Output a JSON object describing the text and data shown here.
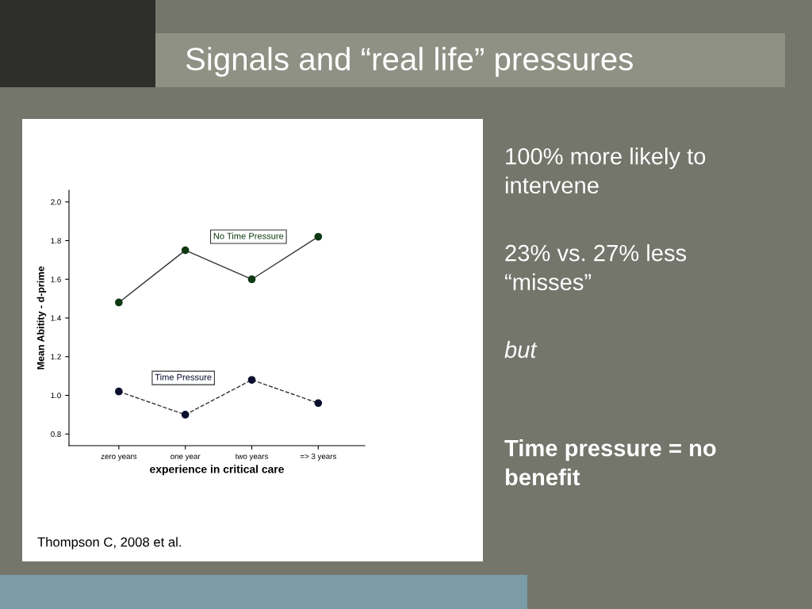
{
  "chart_data": {
    "type": "line",
    "title": "Signals and “real life” pressures",
    "categories": [
      "zero years",
      "one year",
      "two years",
      "=> 3 years"
    ],
    "xlabel": "experience in critical care",
    "ylabel": "Mean Abitity - d-prime",
    "ylim": [
      0.74,
      2.06
    ],
    "yticks": [
      {
        "value": 0.8,
        "label": "0.8"
      },
      {
        "value": 1.0,
        "label": "1.0"
      },
      {
        "value": 1.2,
        "label": "1.2"
      },
      {
        "value": 1.4,
        "label": "1.4"
      },
      {
        "value": 1.6,
        "label": "1.6"
      },
      {
        "value": 1.8,
        "label": "1.8"
      },
      {
        "value": 2.0,
        "label": "2.0"
      }
    ],
    "marker": "circle",
    "grid": false,
    "legend": false,
    "series": [
      {
        "name": "No Time Pressure",
        "color": "#0d3a12",
        "line_style": "solid",
        "values": [
          1.48,
          1.75,
          1.6,
          1.82
        ]
      },
      {
        "name": "Time Pressure",
        "color": "#0a0f2e",
        "line_style": "dashed",
        "values": [
          1.02,
          0.9,
          1.08,
          0.96
        ]
      }
    ],
    "annotations": [
      "100% more likely to intervene",
      "23% vs. 27% less “misses”",
      "but",
      "Time pressure = no benefit",
      "Thompson C, 2008 et al."
    ]
  }
}
